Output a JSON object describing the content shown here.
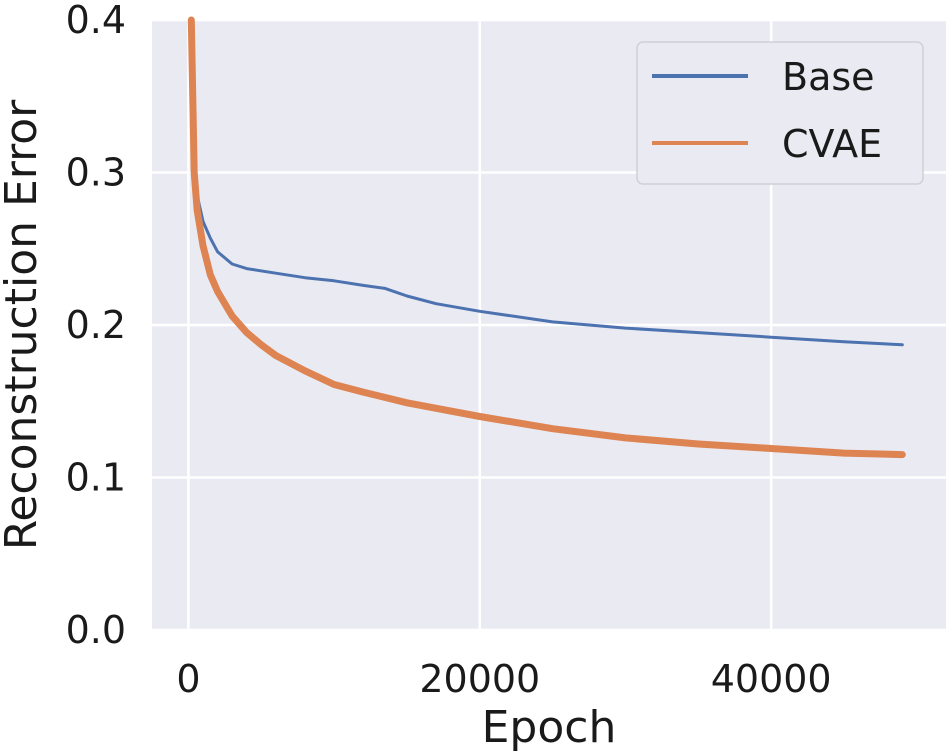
{
  "chart_data": {
    "type": "line",
    "title": "",
    "xlabel": "Epoch",
    "ylabel": "Reconstruction Error",
    "xlim": [
      -2500,
      52000
    ],
    "ylim": [
      0.0,
      0.4
    ],
    "xticks": [
      0,
      20000,
      40000
    ],
    "xtick_labels": [
      "0",
      "20000",
      "40000"
    ],
    "yticks": [
      0.0,
      0.1,
      0.2,
      0.3,
      0.4
    ],
    "ytick_labels": [
      "0.0",
      "0.1",
      "0.2",
      "0.3",
      "0.4"
    ],
    "grid": true,
    "legend_position": "top-right",
    "series": [
      {
        "name": "Base",
        "color": "#4c72b0",
        "x": [
          200,
          400,
          600,
          1000,
          1500,
          2000,
          3000,
          4000,
          6000,
          8000,
          10000,
          12000,
          13500,
          15000,
          17000,
          20000,
          25000,
          30000,
          35000,
          40000,
          45000,
          49000
        ],
        "y": [
          0.4,
          0.31,
          0.285,
          0.268,
          0.257,
          0.248,
          0.24,
          0.237,
          0.234,
          0.231,
          0.229,
          0.226,
          0.224,
          0.219,
          0.214,
          0.209,
          0.202,
          0.198,
          0.195,
          0.192,
          0.189,
          0.187
        ]
      },
      {
        "name": "CVAE",
        "color": "#dd8452",
        "x": [
          200,
          400,
          600,
          1000,
          1500,
          2000,
          3000,
          4000,
          5000,
          6000,
          8000,
          10000,
          12000,
          15000,
          20000,
          25000,
          30000,
          35000,
          40000,
          45000,
          49000
        ],
        "y": [
          0.4,
          0.3,
          0.275,
          0.252,
          0.233,
          0.222,
          0.206,
          0.195,
          0.187,
          0.18,
          0.17,
          0.161,
          0.156,
          0.149,
          0.14,
          0.132,
          0.126,
          0.122,
          0.119,
          0.116,
          0.115
        ]
      }
    ]
  }
}
